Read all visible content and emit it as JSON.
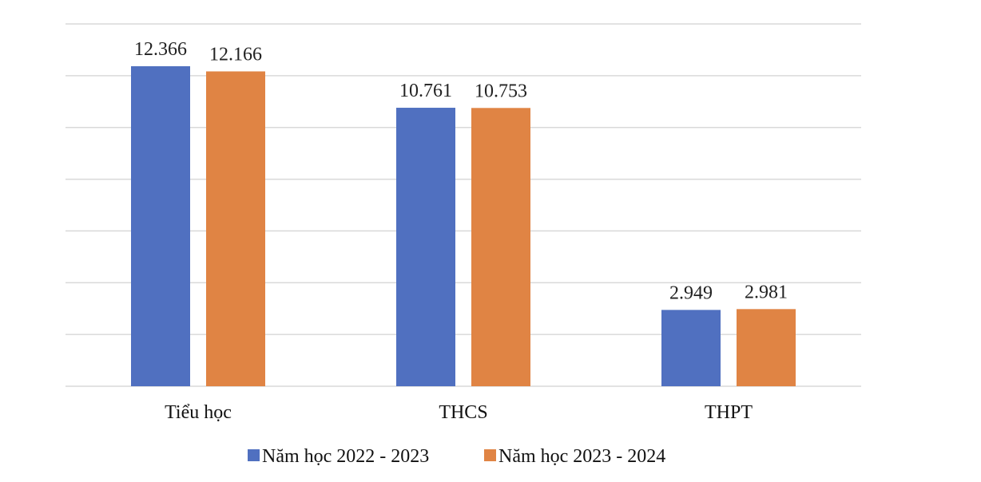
{
  "chart_data": {
    "type": "bar",
    "categories": [
      "Tiểu học",
      "THCS",
      "THPT"
    ],
    "series": [
      {
        "name": "Năm học 2022 - 2023",
        "values": [
          12366,
          10761,
          2949
        ],
        "labels": [
          "12.366",
          "10.761",
          "2.949"
        ],
        "color": "#5070c0"
      },
      {
        "name": "Năm học 2023 - 2024",
        "values": [
          12166,
          10753,
          2981
        ],
        "labels": [
          "12.166",
          "10.753",
          "2.981"
        ],
        "color": "#e08444"
      }
    ],
    "ylim": [
      0,
      14000
    ],
    "grid": true,
    "legend_position": "bottom",
    "xlabel": "",
    "ylabel": ""
  }
}
